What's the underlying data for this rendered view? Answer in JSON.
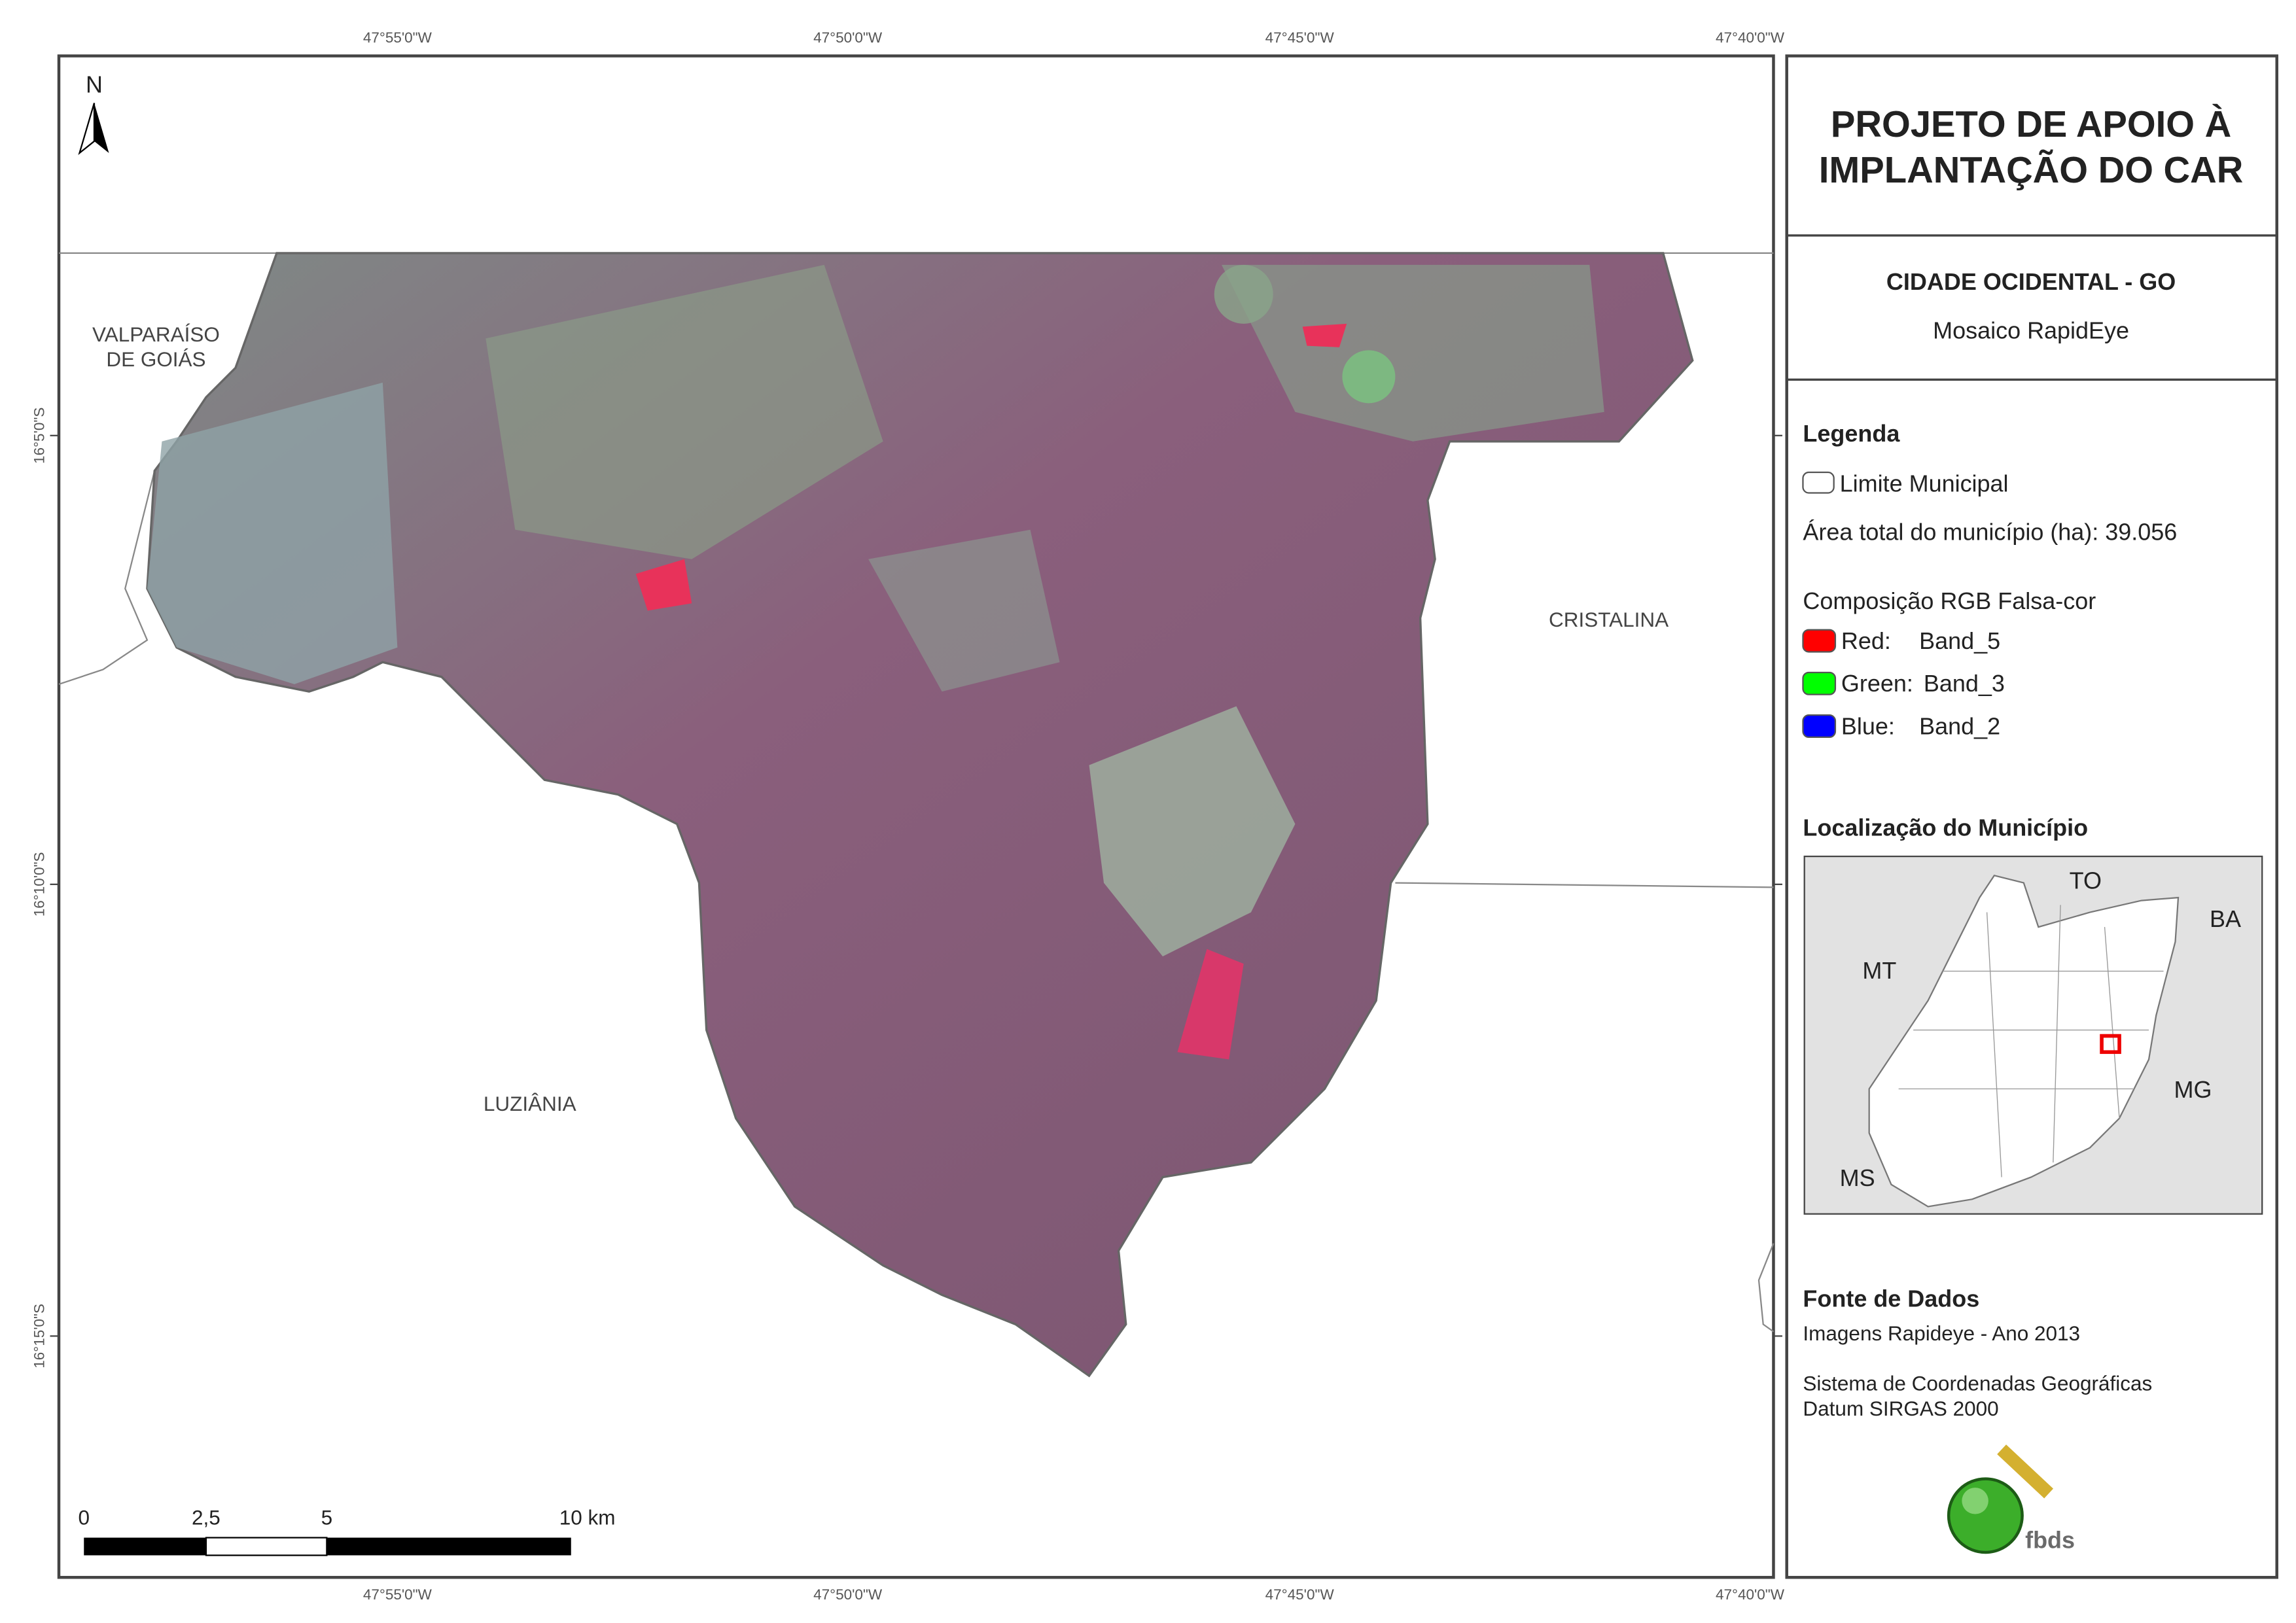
{
  "map": {
    "grid_labels": {
      "lon": [
        "47°55'0\"W",
        "47°50'0\"W",
        "47°45'0\"W",
        "47°40'0\"W"
      ],
      "lat": [
        "16°5'0\"S",
        "16°10'0\"S",
        "16°15'0\"S"
      ]
    },
    "north": "N",
    "places": {
      "valparaiso": [
        "VALPARAÍSO",
        "DE GOIÁS"
      ],
      "cristalina": "CRISTALINA",
      "luziania": "LUZIÂNIA"
    },
    "scale_bar": [
      "0",
      "2,5",
      "5",
      "10 km"
    ]
  },
  "panel": {
    "title": [
      "PROJETO DE APOIO À",
      "IMPLANTAÇÃO DO CAR"
    ],
    "municipality": "CIDADE OCIDENTAL - GO",
    "subtitle": "Mosaico RapidEye",
    "legend": {
      "heading": "Legenda",
      "boundary": "Limite Municipal",
      "area": "Área total do município (ha): 39.056",
      "composition": "Composição RGB Falsa-cor",
      "bands": [
        [
          "Red:",
          "Band_5"
        ],
        [
          "Green:",
          "Band_3"
        ],
        [
          "Blue:",
          "Band_2"
        ]
      ]
    },
    "location": {
      "heading": "Localização do Município",
      "states": [
        "TO",
        "BA",
        "MT",
        "MG",
        "MS"
      ]
    },
    "sources": {
      "heading": "Fonte de Dados",
      "lines": [
        "Imagens Rapideye - Ano 2013",
        "Sistema de Coordenadas Geográficas",
        "Datum SIRGAS 2000"
      ]
    },
    "logo": "fbds"
  }
}
